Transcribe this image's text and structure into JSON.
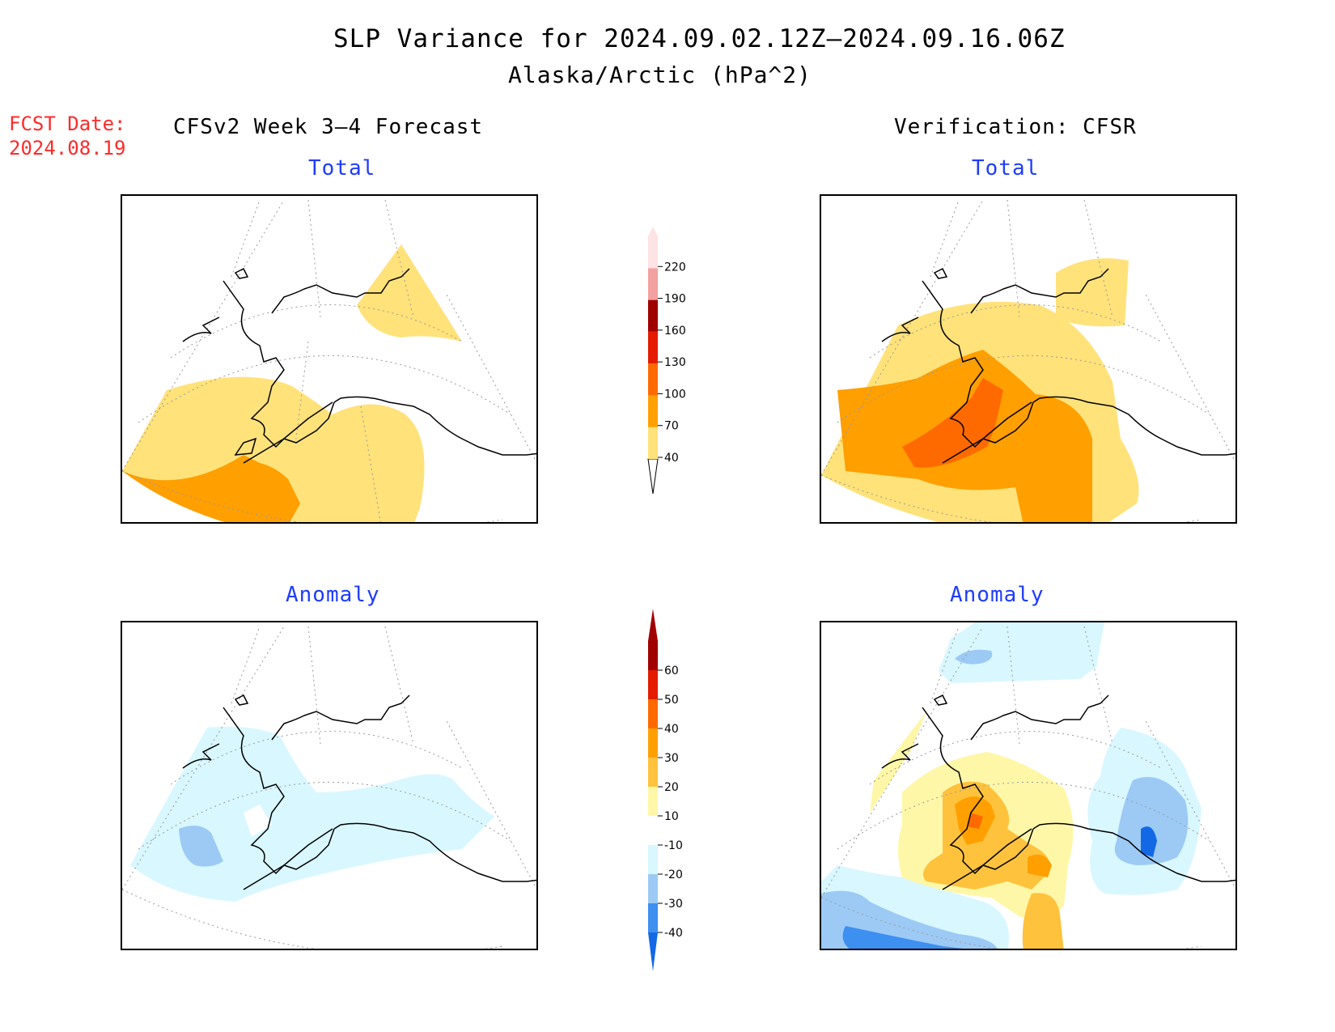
{
  "title": "SLP Variance for 2024.09.02.12Z–2024.09.16.06Z",
  "subtitle": "Alaska/Arctic (hPa^2)",
  "fcst_date_label": "FCST Date:",
  "fcst_date_value": "2024.08.19",
  "left_column_heading": "CFSv2 Week 3–4 Forecast",
  "right_column_heading": "Verification: CFSR",
  "panels": {
    "forecast_total": {
      "label": "Total"
    },
    "verification_total": {
      "label": "Total"
    },
    "forecast_anomaly": {
      "label": "Anomaly"
    },
    "verification_anomaly": {
      "label": "Anomaly"
    }
  },
  "total_colorbar": {
    "ticks": [
      "40",
      "70",
      "100",
      "130",
      "160",
      "190",
      "220"
    ],
    "colors": [
      "#ffe27a",
      "#ff9f00",
      "#ff6a00",
      "#e41b00",
      "#a00000",
      "#f3a0a0",
      "#fde3e3"
    ]
  },
  "anomaly_colorbar": {
    "ticks": [
      "-40",
      "-30",
      "-20",
      "-10",
      "10",
      "20",
      "30",
      "40",
      "50",
      "60"
    ],
    "colors": [
      "#1368e6",
      "#3d8ff0",
      "#9ccaf5",
      "#d9f7ff",
      "#ffffff",
      "#fff7a8",
      "#ffc23d",
      "#ffa000",
      "#ff6a00",
      "#e41b00",
      "#a00000"
    ]
  },
  "colors": {
    "title_red": "#ff2a2a",
    "panel_label_blue": "#1f3bff"
  }
}
